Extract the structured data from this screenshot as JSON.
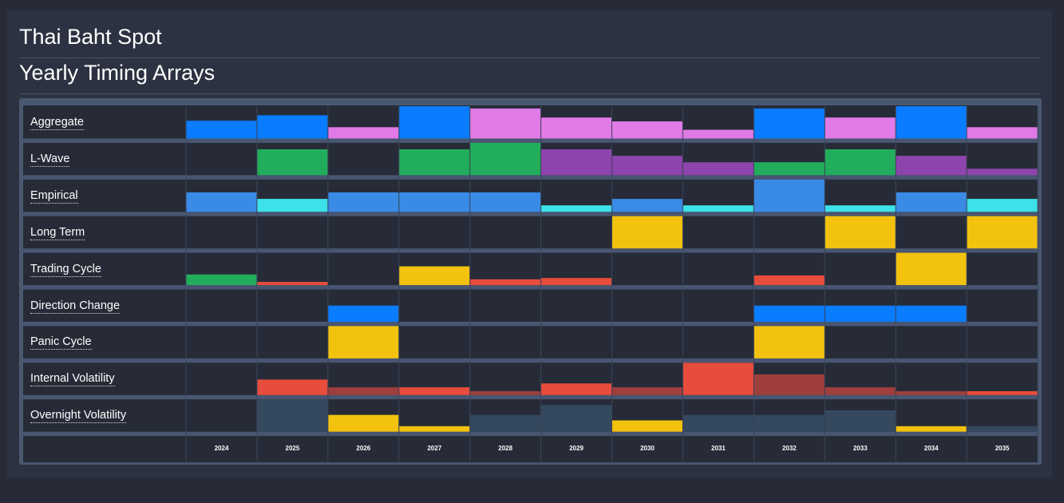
{
  "header": {
    "title": "Thai Baht Spot",
    "subtitle": "Yearly Timing Arrays"
  },
  "colors": {
    "blue": "#0a7cff",
    "pink": "#e07ae6",
    "green": "#22ad5c",
    "purple": "#8e44ad",
    "lightblue": "#3a8be6",
    "cyan": "#3de1e8",
    "yellow": "#f2c20f",
    "red": "#e74c3c",
    "darkred": "#9e3f3d",
    "slate": "#34495e"
  },
  "chart_data": {
    "type": "heatmap",
    "years": [
      "2024",
      "2025",
      "2026",
      "2027",
      "2028",
      "2029",
      "2030",
      "2031",
      "2032",
      "2033",
      "2034",
      "2035"
    ],
    "value_scale": [
      0,
      1
    ],
    "rows": [
      {
        "name": "Aggregate",
        "cells": [
          {
            "v": 0.55,
            "c": "blue"
          },
          {
            "v": 0.72,
            "c": "blue"
          },
          {
            "v": 0.35,
            "c": "pink"
          },
          {
            "v": 1.0,
            "c": "blue"
          },
          {
            "v": 0.93,
            "c": "pink"
          },
          {
            "v": 0.65,
            "c": "pink"
          },
          {
            "v": 0.53,
            "c": "pink"
          },
          {
            "v": 0.27,
            "c": "pink"
          },
          {
            "v": 0.93,
            "c": "blue"
          },
          {
            "v": 0.65,
            "c": "pink"
          },
          {
            "v": 1.0,
            "c": "blue"
          },
          {
            "v": 0.35,
            "c": "pink"
          }
        ]
      },
      {
        "name": "L-Wave",
        "cells": [
          null,
          {
            "v": 0.8,
            "c": "green"
          },
          null,
          {
            "v": 0.8,
            "c": "green"
          },
          {
            "v": 1.0,
            "c": "green"
          },
          {
            "v": 0.8,
            "c": "purple"
          },
          {
            "v": 0.6,
            "c": "purple"
          },
          {
            "v": 0.4,
            "c": "purple"
          },
          {
            "v": 0.4,
            "c": "green"
          },
          {
            "v": 0.8,
            "c": "green"
          },
          {
            "v": 0.6,
            "c": "purple"
          },
          {
            "v": 0.2,
            "c": "purple"
          }
        ]
      },
      {
        "name": "Empirical",
        "cells": [
          {
            "v": 0.6,
            "c": "lightblue"
          },
          {
            "v": 0.4,
            "c": "cyan"
          },
          {
            "v": 0.6,
            "c": "lightblue"
          },
          {
            "v": 0.6,
            "c": "lightblue"
          },
          {
            "v": 0.6,
            "c": "lightblue"
          },
          {
            "v": 0.2,
            "c": "cyan"
          },
          {
            "v": 0.4,
            "c": "lightblue"
          },
          {
            "v": 0.2,
            "c": "cyan"
          },
          {
            "v": 1.0,
            "c": "lightblue"
          },
          {
            "v": 0.2,
            "c": "cyan"
          },
          {
            "v": 0.6,
            "c": "lightblue"
          },
          {
            "v": 0.4,
            "c": "cyan"
          }
        ]
      },
      {
        "name": "Long Term",
        "cells": [
          null,
          null,
          null,
          null,
          null,
          null,
          {
            "v": 1.0,
            "c": "yellow"
          },
          null,
          null,
          {
            "v": 1.0,
            "c": "yellow"
          },
          null,
          {
            "v": 1.0,
            "c": "yellow"
          }
        ]
      },
      {
        "name": "Trading Cycle",
        "cells": [
          {
            "v": 0.33,
            "c": "green"
          },
          {
            "v": 0.1,
            "c": "red"
          },
          null,
          {
            "v": 0.58,
            "c": "yellow"
          },
          {
            "v": 0.18,
            "c": "red"
          },
          {
            "v": 0.22,
            "c": "red"
          },
          null,
          null,
          {
            "v": 0.3,
            "c": "red"
          },
          null,
          {
            "v": 1.0,
            "c": "yellow"
          },
          null
        ]
      },
      {
        "name": "Direction Change",
        "cells": [
          null,
          null,
          {
            "v": 0.5,
            "c": "blue"
          },
          null,
          null,
          null,
          null,
          null,
          {
            "v": 0.5,
            "c": "blue"
          },
          {
            "v": 0.5,
            "c": "blue"
          },
          {
            "v": 0.5,
            "c": "blue"
          },
          null
        ]
      },
      {
        "name": "Panic Cycle",
        "cells": [
          null,
          null,
          {
            "v": 1.0,
            "c": "yellow"
          },
          null,
          null,
          null,
          null,
          null,
          {
            "v": 1.0,
            "c": "yellow"
          },
          null,
          null,
          null
        ]
      },
      {
        "name": "Internal Volatility",
        "cells": [
          null,
          {
            "v": 0.48,
            "c": "red"
          },
          {
            "v": 0.24,
            "c": "darkred"
          },
          {
            "v": 0.24,
            "c": "red"
          },
          {
            "v": 0.12,
            "c": "darkred"
          },
          {
            "v": 0.36,
            "c": "red"
          },
          {
            "v": 0.24,
            "c": "darkred"
          },
          {
            "v": 1.0,
            "c": "red"
          },
          {
            "v": 0.64,
            "c": "darkred"
          },
          {
            "v": 0.24,
            "c": "darkred"
          },
          {
            "v": 0.12,
            "c": "darkred"
          },
          {
            "v": 0.12,
            "c": "red"
          }
        ]
      },
      {
        "name": "Overnight Volatility",
        "cells": [
          null,
          {
            "v": 1.0,
            "c": "slate"
          },
          {
            "v": 0.52,
            "c": "yellow"
          },
          {
            "v": 0.17,
            "c": "yellow"
          },
          {
            "v": 0.52,
            "c": "slate"
          },
          {
            "v": 0.83,
            "c": "slate"
          },
          {
            "v": 0.35,
            "c": "yellow"
          },
          {
            "v": 0.52,
            "c": "slate"
          },
          {
            "v": 0.52,
            "c": "slate"
          },
          {
            "v": 0.66,
            "c": "slate"
          },
          {
            "v": 0.17,
            "c": "yellow"
          },
          {
            "v": 0.17,
            "c": "slate"
          }
        ]
      }
    ]
  }
}
